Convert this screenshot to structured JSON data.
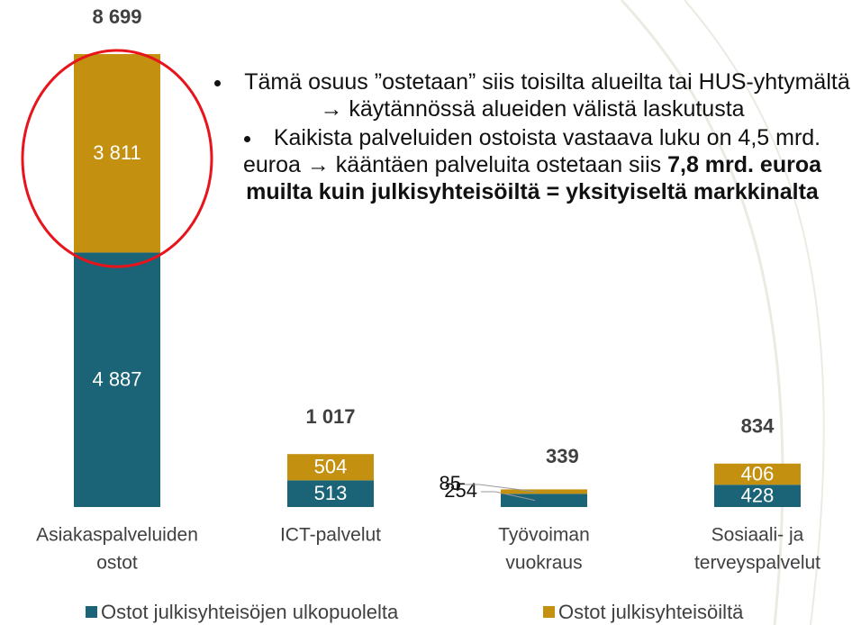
{
  "chart_data": {
    "type": "stacked-bar",
    "categories": [
      [
        "Asiakaspalveluiden",
        "ostot"
      ],
      [
        "ICT-palvelut"
      ],
      [
        "Työvoiman",
        "vuokraus"
      ],
      [
        "Sosiaali- ja",
        "terveyspalvelut"
      ]
    ],
    "series": [
      {
        "name": "Ostot julkisyhteisöjen ulkopuolelta",
        "color": "#1b6377",
        "values": [
          4887,
          513,
          254,
          428
        ],
        "value_labels": [
          "4 887",
          "513",
          "254",
          "428"
        ]
      },
      {
        "name": "Ostot julkisyhteisöiltä",
        "color": "#c4900f",
        "values": [
          3811,
          504,
          85,
          406
        ],
        "value_labels": [
          "3 811",
          "504",
          "85",
          "406"
        ]
      }
    ],
    "totals": {
      "values": [
        8699,
        1017,
        339,
        834
      ],
      "value_labels": [
        "8 699",
        "1 017",
        "339",
        "834"
      ]
    },
    "annotation": {
      "bullets": [
        [
          {
            "text": "Tämä osuus ”ostetaan” siis toisilta alueilta tai HUS-yhtymältä → käytännössä alueiden välistä laskutusta"
          }
        ],
        [
          {
            "text": "Kaikista palveluiden ostoista vastaava luku on 4,5 mrd. euroa → kääntäen palveluita ostetaan siis "
          },
          {
            "text": "7,8 mrd. euroa muilta kuin julkisyhteisöiltä = yksityiseltä markkinalta",
            "bold": true
          }
        ]
      ]
    },
    "legend": "bottom"
  }
}
